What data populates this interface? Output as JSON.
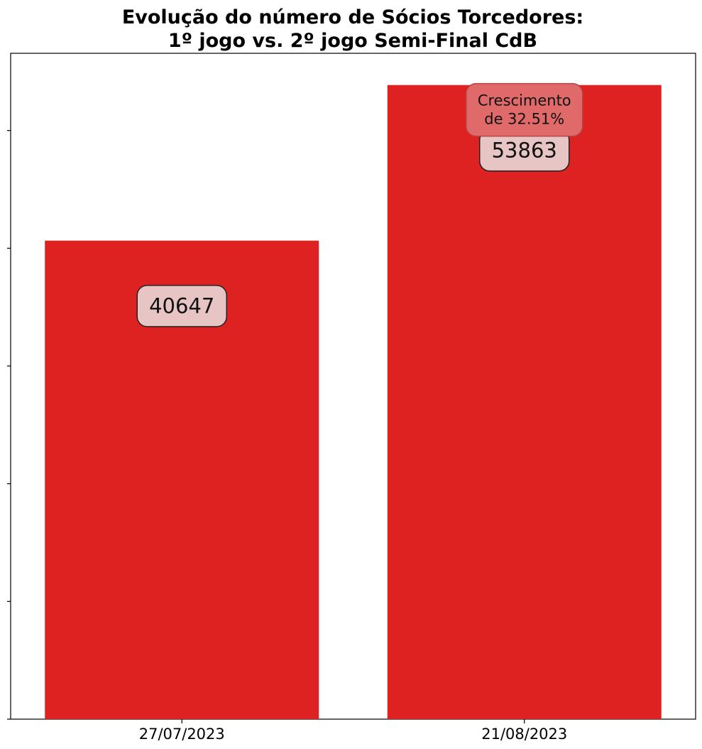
{
  "chart_data": {
    "type": "bar",
    "title": "Evolução do número de Sócios Torcedores:\n1º jogo vs. 2º jogo Semi-Final CdB",
    "title_lines": [
      "Evolução do número de Sócios Torcedores:",
      "1º jogo vs. 2º jogo Semi-Final CdB"
    ],
    "categories": [
      "27/07/2023",
      "21/08/2023"
    ],
    "values": [
      40647,
      53863
    ],
    "data_labels": [
      "40647",
      "53863"
    ],
    "annotation": {
      "lines": [
        "Crescimento",
        "de 32.51%"
      ],
      "category": "21/08/2023"
    },
    "xlabel": "",
    "ylabel": "",
    "ylim": [
      0,
      56560
    ],
    "y_tick_values": [
      0,
      10000,
      20000,
      30000,
      40000,
      50000
    ],
    "y_tick_labels_shown": false,
    "grid": false,
    "legend": "none",
    "colors": {
      "bar": "#de2121",
      "label_box_fill": "#e8c5c5",
      "label_box_stroke": "#222222",
      "annotation_box_fill": "#e06a6a",
      "annotation_box_stroke": "#b84343",
      "axis": "#000000",
      "text": "#000000"
    }
  }
}
